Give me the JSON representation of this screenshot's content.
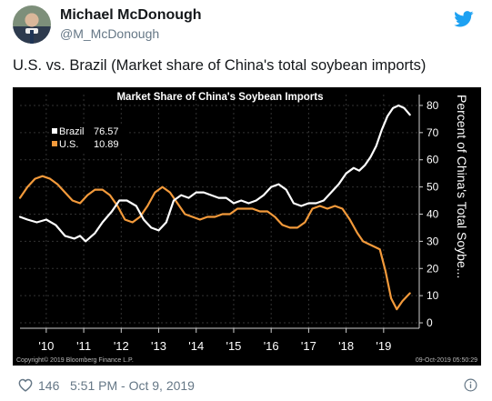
{
  "user": {
    "name": "Michael McDonough",
    "handle": "@M_McDonough"
  },
  "tweet": {
    "text": "U.S. vs. Brazil (Market share of China's total soybean imports)",
    "likes": "146",
    "timestamp": "5:51 PM - Oct 9, 2019"
  },
  "icons": {
    "brand": "twitter-bird-icon",
    "like": "heart-icon",
    "info": "info-icon"
  },
  "colors": {
    "twitter_blue": "#1da1f2",
    "brazil": "#ffffff",
    "us": "#f39a3b",
    "chart_bg": "#000000"
  },
  "chart_data": {
    "type": "line",
    "title": "Market Share of China's Soybean Imports",
    "ylabel": "Percent of China's Total Soybe...",
    "ylim": [
      -2,
      84
    ],
    "yticks": [
      0,
      10,
      20,
      30,
      40,
      50,
      60,
      70,
      80
    ],
    "xticks": [
      "'10",
      "'11",
      "'12",
      "'13",
      "'14",
      "'15",
      "'16",
      "'17",
      "'18",
      "'19"
    ],
    "x_tick_positions": [
      2010,
      2011,
      2012,
      2013,
      2014,
      2015,
      2016,
      2017,
      2018,
      2019
    ],
    "xlim": [
      2009.3,
      2019.95
    ],
    "legend_position": "top-left",
    "copyright": "Copyright© 2019 Bloomberg Finance L.P.",
    "date_stamp": "09-Oct-2019 05:50:29",
    "series": [
      {
        "name": "Brazil",
        "last_value": "76.57",
        "color": "#ffffff",
        "x": [
          2009.3,
          2009.5,
          2009.75,
          2010.0,
          2010.25,
          2010.5,
          2010.75,
          2010.9,
          2011.05,
          2011.3,
          2011.5,
          2011.75,
          2011.95,
          2012.15,
          2012.4,
          2012.6,
          2012.8,
          2013.0,
          2013.2,
          2013.4,
          2013.6,
          2013.8,
          2014.0,
          2014.2,
          2014.4,
          2014.6,
          2014.8,
          2015.0,
          2015.2,
          2015.4,
          2015.6,
          2015.8,
          2016.0,
          2016.2,
          2016.4,
          2016.6,
          2016.8,
          2017.0,
          2017.2,
          2017.4,
          2017.6,
          2017.8,
          2018.0,
          2018.2,
          2018.35,
          2018.5,
          2018.65,
          2018.8,
          2018.95,
          2019.1,
          2019.25,
          2019.4,
          2019.55,
          2019.7
        ],
        "values": [
          39,
          38,
          37,
          38,
          36,
          32,
          31,
          32,
          30,
          33,
          37,
          41,
          45,
          45,
          43,
          38,
          35,
          34,
          37,
          45,
          47,
          46,
          48,
          48,
          47,
          46,
          46,
          44,
          45,
          44,
          45,
          47,
          50,
          51,
          49,
          44,
          43,
          44,
          44,
          45,
          48,
          51,
          55,
          57,
          56,
          58,
          61,
          65,
          71,
          76,
          79,
          80,
          79,
          76.57
        ]
      },
      {
        "name": "U.S.",
        "last_value": "10.89",
        "color": "#f39a3b",
        "x": [
          2009.3,
          2009.5,
          2009.7,
          2009.9,
          2010.1,
          2010.3,
          2010.5,
          2010.7,
          2010.9,
          2011.1,
          2011.3,
          2011.5,
          2011.7,
          2011.9,
          2012.1,
          2012.3,
          2012.5,
          2012.7,
          2012.9,
          2013.1,
          2013.3,
          2013.5,
          2013.7,
          2013.9,
          2014.1,
          2014.3,
          2014.5,
          2014.7,
          2014.9,
          2015.1,
          2015.3,
          2015.5,
          2015.7,
          2015.9,
          2016.1,
          2016.3,
          2016.5,
          2016.7,
          2016.9,
          2017.1,
          2017.3,
          2017.5,
          2017.7,
          2017.9,
          2018.1,
          2018.3,
          2018.45,
          2018.6,
          2018.75,
          2018.9,
          2019.05,
          2019.2,
          2019.35,
          2019.5,
          2019.7
        ],
        "values": [
          46,
          50,
          53,
          54,
          53,
          51,
          48,
          45,
          44,
          47,
          49,
          49,
          47,
          43,
          38,
          37,
          39,
          43,
          48,
          50,
          48,
          44,
          40,
          39,
          38,
          39,
          39,
          40,
          40,
          42,
          42,
          42,
          41,
          41,
          39,
          36,
          35,
          35,
          37,
          42,
          43,
          42,
          43,
          42,
          38,
          33,
          30,
          29,
          28,
          27,
          19,
          9,
          5,
          8,
          10.89
        ]
      }
    ]
  }
}
